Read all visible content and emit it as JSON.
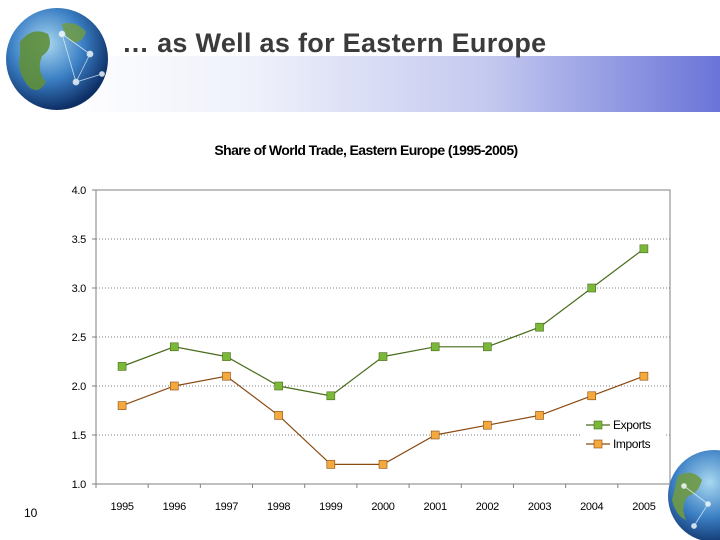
{
  "slide": {
    "title": "… as Well as for Eastern Europe",
    "page_number": "10"
  },
  "colors": {
    "exports": "#7ab83a",
    "imports": "#f4a93c",
    "exports_line": "#4a6b1a",
    "imports_line": "#8a4a10",
    "accent": "#6a74d8"
  },
  "icons": [
    "globe-icon",
    "globe-icon"
  ],
  "chart_data": {
    "type": "line",
    "title": "Share of World Trade, Eastern Europe (1995-2005)",
    "xlabel": "",
    "ylabel": "",
    "categories": [
      "1995",
      "1996",
      "1997",
      "1998",
      "1999",
      "2000",
      "2001",
      "2002",
      "2003",
      "2004",
      "2005"
    ],
    "series": [
      {
        "name": "Exports",
        "values": [
          2.2,
          2.4,
          2.3,
          2.0,
          1.9,
          2.3,
          2.4,
          2.4,
          2.6,
          3.0,
          3.4
        ]
      },
      {
        "name": "Imports",
        "values": [
          1.8,
          2.0,
          2.1,
          1.7,
          1.2,
          1.2,
          1.5,
          1.6,
          1.7,
          1.9,
          2.1
        ]
      }
    ],
    "ylim": [
      1.0,
      4.0
    ],
    "yticks": [
      "1.0",
      "1.5",
      "2.0",
      "2.5",
      "3.0",
      "3.5",
      "4.0"
    ],
    "grid": "horizontal dotted",
    "legend": "bottom-right"
  }
}
